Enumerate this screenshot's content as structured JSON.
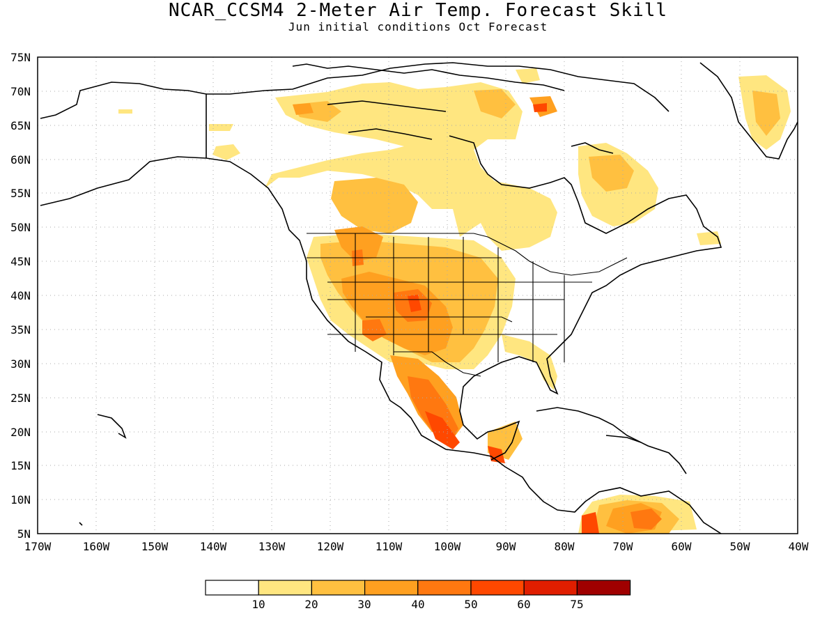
{
  "title": "NCAR_CCSM4 2-Meter Air Temp. Forecast Skill",
  "subtitle": "Jun initial conditions  Oct Forecast",
  "map": {
    "lat_labels": [
      "75N",
      "70N",
      "65N",
      "60N",
      "55N",
      "50N",
      "45N",
      "40N",
      "35N",
      "30N",
      "25N",
      "20N",
      "15N",
      "10N",
      "5N"
    ],
    "lon_labels": [
      "170W",
      "160W",
      "150W",
      "140W",
      "130W",
      "120W",
      "110W",
      "100W",
      "90W",
      "80W",
      "70W",
      "60W",
      "50W",
      "40W"
    ],
    "lat_range": [
      5,
      75
    ],
    "lon_range": [
      -170,
      -40
    ],
    "grid": "dotted"
  },
  "colorbar": {
    "colors": [
      "#ffffff",
      "#ffe680",
      "#ffc040",
      "#ffa020",
      "#ff7810",
      "#ff4800",
      "#e01e00",
      "#a00000"
    ],
    "labels": [
      "10",
      "20",
      "30",
      "40",
      "50",
      "60",
      "75"
    ]
  }
}
